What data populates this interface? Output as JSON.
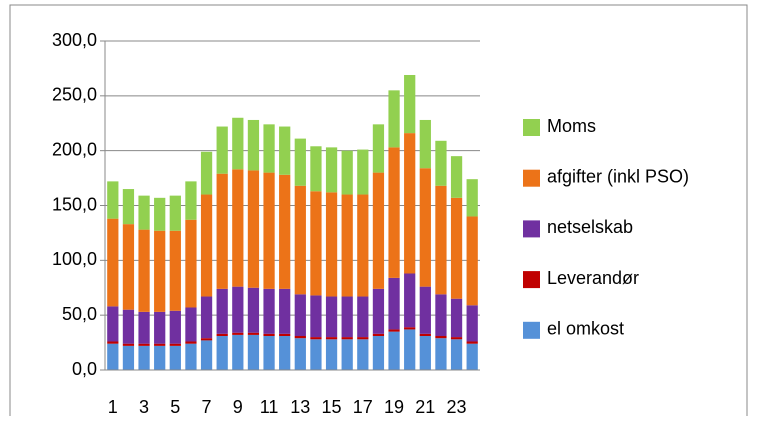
{
  "chart_data": {
    "type": "stacked-bar",
    "categories": [
      "1",
      null,
      "3",
      null,
      "5",
      null,
      "7",
      null,
      "9",
      null,
      "11",
      null,
      "13",
      null,
      "15",
      null,
      "17",
      null,
      "19",
      null,
      "21",
      null,
      "23",
      null
    ],
    "series": [
      {
        "name": "el omkost",
        "color": "#5591d8",
        "values": [
          24,
          22,
          22,
          22,
          22,
          24,
          27,
          31,
          32,
          32,
          31,
          31,
          29,
          28,
          28,
          28,
          28,
          31,
          35,
          37,
          31,
          29,
          28,
          24
        ]
      },
      {
        "name": "Leverandør",
        "color": "#c00000",
        "values": [
          2,
          2,
          2,
          2,
          2,
          2,
          2,
          2,
          2,
          2,
          2,
          2,
          2,
          2,
          2,
          2,
          2,
          2,
          2,
          2,
          2,
          2,
          2,
          2
        ]
      },
      {
        "name": "netselskab",
        "color": "#7030a0",
        "values": [
          32,
          31,
          29,
          29,
          30,
          31,
          38,
          41,
          42,
          41,
          41,
          41,
          38,
          38,
          37,
          37,
          37,
          41,
          47,
          49,
          43,
          38,
          35,
          33
        ]
      },
      {
        "name": "afgifter (inkl PSO)",
        "color": "#ec7318",
        "values": [
          80,
          78,
          75,
          74,
          73,
          80,
          93,
          105,
          107,
          107,
          106,
          104,
          99,
          95,
          95,
          93,
          93,
          106,
          119,
          128,
          108,
          99,
          92,
          81
        ]
      },
      {
        "name": "Moms",
        "color": "#92d050",
        "values": [
          34,
          32,
          31,
          30,
          32,
          35,
          39,
          43,
          47,
          46,
          44,
          44,
          43,
          41,
          41,
          40,
          41,
          44,
          52,
          53,
          44,
          41,
          38,
          34
        ]
      }
    ],
    "ylim": [
      0,
      300
    ],
    "yticks": [
      {
        "value": 0,
        "label": "0,0"
      },
      {
        "value": 50,
        "label": "50,0"
      },
      {
        "value": 100,
        "label": "100,0"
      },
      {
        "value": 150,
        "label": "150,0"
      },
      {
        "value": 200,
        "label": "200,0"
      },
      {
        "value": 250,
        "label": "250,0"
      },
      {
        "value": 300,
        "label": "300,0"
      }
    ],
    "grid": true
  }
}
